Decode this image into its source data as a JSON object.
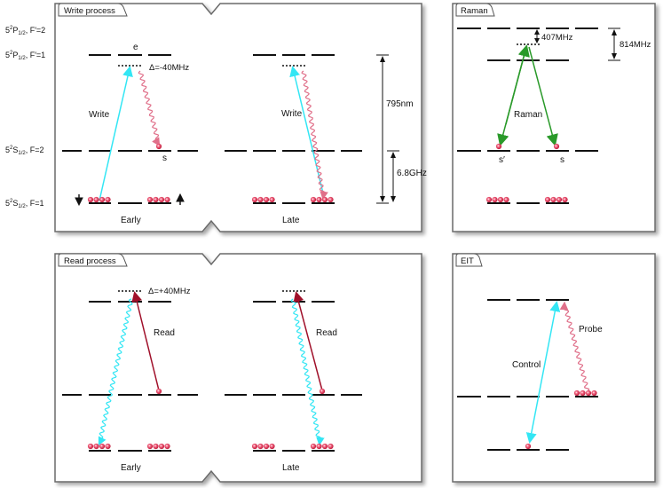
{
  "panels": {
    "write": "Write process",
    "read": "Read process",
    "raman": "Raman",
    "eit": "EIT"
  },
  "levels": {
    "p32": [
      "5",
      "2",
      "P",
      "1/2",
      ", F′=2"
    ],
    "p12": [
      "5",
      "2",
      "P",
      "1/2",
      ", F′=1"
    ],
    "s2": [
      "5",
      "2",
      "S",
      "1/2",
      ", F=2"
    ],
    "s1": [
      "5",
      "2",
      "S",
      "1/2",
      ", F=1"
    ]
  },
  "write": {
    "e_label": "e",
    "delta": "Δ=-40MHz",
    "arrow_label": "Write",
    "s_label": "s",
    "early": "Early",
    "late": "Late",
    "wavelength": "795nm",
    "hyperfine": "6.8GHz"
  },
  "read": {
    "delta": "Δ=+40MHz",
    "arrow_label": "Read",
    "early": "Early",
    "late": "Late"
  },
  "raman": {
    "label": "Raman",
    "split1": "407MHz",
    "split2": "814MHz",
    "s_prime": "s′",
    "s": "s"
  },
  "eit": {
    "control": "Control",
    "probe": "Probe"
  },
  "colors": {
    "cyan": "#33e6f4",
    "pink": "#e0708a",
    "darkred": "#a0102a",
    "green": "#2a9a2a",
    "atom": "#d83050",
    "frame": "#6a6a6a"
  }
}
